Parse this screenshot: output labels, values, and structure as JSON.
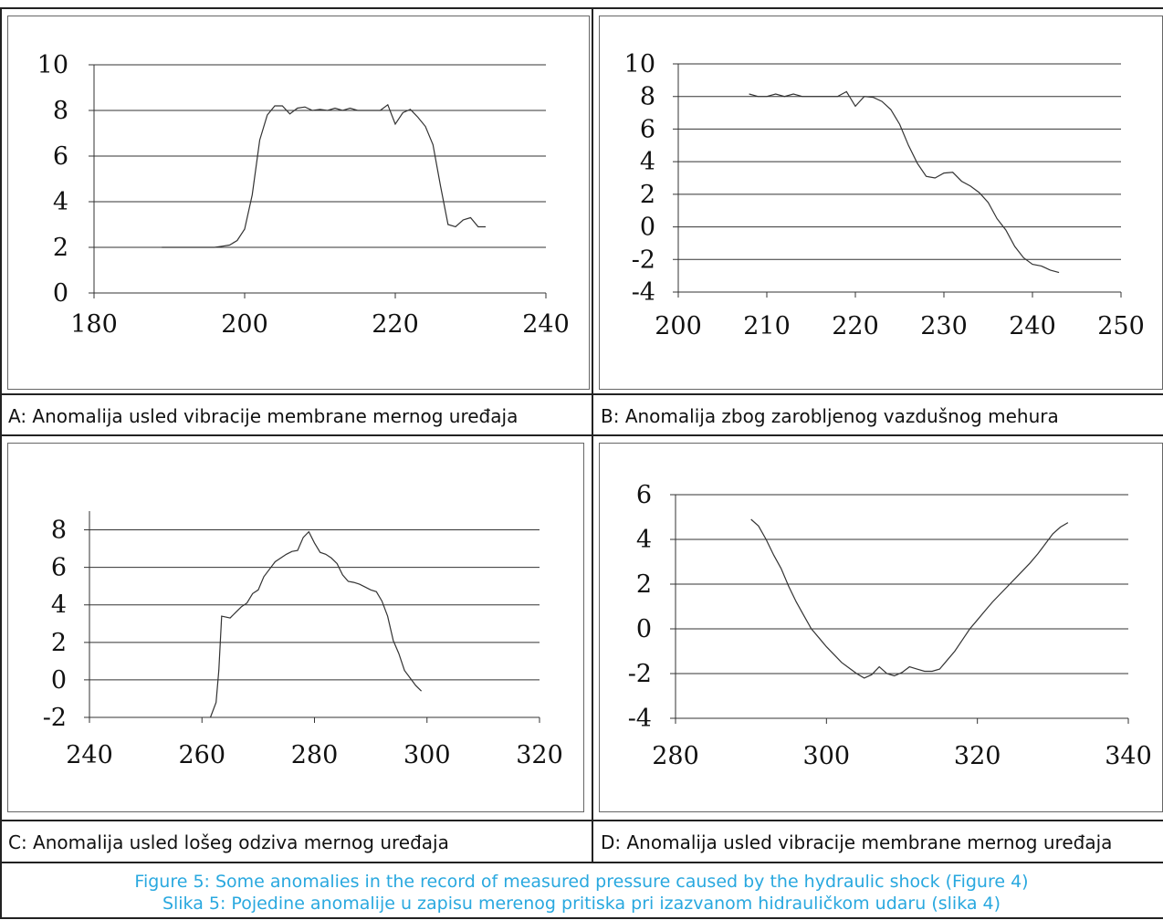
{
  "panels": [
    {
      "caption": "A: Anomalija usled vibracije membrane mernog uređaja",
      "chart_data": {
        "type": "line",
        "xlim": [
          180,
          240
        ],
        "ylim": [
          0,
          10
        ],
        "xticks": [
          180,
          200,
          220,
          240
        ],
        "yticks": [
          0,
          2,
          4,
          6,
          8,
          10
        ],
        "grid": true,
        "series": [
          {
            "x": [
              189,
              190,
              192,
              194,
              196,
              197,
              198,
              199,
              200,
              201,
              202,
              203,
              204,
              205,
              206,
              207,
              208,
              209,
              210,
              211,
              212,
              213,
              214,
              215,
              216,
              217,
              218,
              219,
              220,
              221,
              222,
              223,
              224,
              225,
              226,
              227,
              228,
              229,
              230,
              231,
              232
            ],
            "y": [
              2,
              2,
              2,
              2,
              2,
              2.05,
              2.1,
              2.3,
              2.8,
              4.3,
              6.7,
              7.8,
              8.2,
              8.2,
              7.85,
              8.1,
              8.15,
              8.0,
              8.05,
              8.0,
              8.1,
              8.0,
              8.1,
              8.0,
              8.0,
              8.0,
              8.0,
              8.25,
              7.4,
              7.9,
              8.05,
              7.7,
              7.3,
              6.5,
              4.7,
              3.0,
              2.9,
              3.2,
              3.3,
              2.9,
              2.9
            ]
          }
        ]
      }
    },
    {
      "caption": "B: Anomalija zbog zarobljenog vazdušnog mehura",
      "chart_data": {
        "type": "line",
        "xlim": [
          200,
          250
        ],
        "ylim": [
          -4,
          10
        ],
        "xticks": [
          200,
          210,
          220,
          230,
          240,
          250
        ],
        "yticks": [
          -4,
          -2,
          0,
          2,
          4,
          6,
          8,
          10
        ],
        "grid": true,
        "series": [
          {
            "x": [
              208,
              209,
              210,
              211,
              212,
              213,
              214,
              215,
              216,
              217,
              218,
              219,
              220,
              221,
              222,
              223,
              224,
              225,
              226,
              227,
              228,
              229,
              230,
              231,
              232,
              233,
              234,
              235,
              236,
              237,
              238,
              239,
              240,
              241,
              242,
              243
            ],
            "y": [
              8.15,
              8.0,
              8.0,
              8.15,
              8.0,
              8.15,
              8.0,
              8.0,
              8.0,
              8.0,
              8.0,
              8.3,
              7.4,
              8.0,
              7.95,
              7.7,
              7.2,
              6.3,
              5.0,
              3.9,
              3.1,
              3.0,
              3.3,
              3.35,
              2.8,
              2.5,
              2.1,
              1.5,
              0.5,
              -0.2,
              -1.2,
              -1.9,
              -2.3,
              -2.4,
              -2.65,
              -2.8
            ]
          }
        ]
      }
    },
    {
      "caption": "C: Anomalija usled lošeg odziva mernog uređaja",
      "chart_data": {
        "type": "line",
        "xlim": [
          240,
          320
        ],
        "ylim": [
          -2,
          9
        ],
        "xticks": [
          240,
          260,
          280,
          300,
          320
        ],
        "yticks": [
          -2,
          0,
          2,
          4,
          6,
          8
        ],
        "grid": true,
        "series": [
          {
            "x": [
              261.5,
              262.5,
              263,
              263.5,
              265,
              266,
              267,
              268,
              269,
              270,
              271,
              272,
              273,
              274,
              275,
              276,
              277,
              278,
              279,
              280,
              281,
              282,
              283,
              284,
              285,
              286,
              287,
              288,
              289,
              290,
              291,
              292,
              293,
              294,
              295,
              296,
              297,
              298,
              299
            ],
            "y": [
              -2,
              -1.2,
              0.5,
              3.4,
              3.3,
              3.6,
              3.9,
              4.1,
              4.6,
              4.8,
              5.5,
              5.9,
              6.3,
              6.5,
              6.7,
              6.85,
              6.9,
              7.6,
              7.9,
              7.3,
              6.8,
              6.7,
              6.5,
              6.2,
              5.6,
              5.25,
              5.2,
              5.1,
              4.95,
              4.8,
              4.7,
              4.2,
              3.4,
              2.1,
              1.4,
              0.5,
              0.1,
              -0.3,
              -0.6
            ]
          }
        ]
      }
    },
    {
      "caption": "D: Anomalija usled vibracije membrane mernog uređaja",
      "chart_data": {
        "type": "line",
        "xlim": [
          280,
          340
        ],
        "ylim": [
          -4,
          6
        ],
        "xticks": [
          280,
          300,
          320,
          340
        ],
        "yticks": [
          -4,
          -2,
          0,
          2,
          4,
          6
        ],
        "grid": true,
        "series": [
          {
            "x": [
              290,
              291,
              292,
              293,
              294,
              295,
              296,
              297,
              298,
              299,
              300,
              301,
              302,
              303,
              304,
              305,
              306,
              307,
              308,
              309,
              310,
              311,
              312,
              313,
              314,
              315,
              316,
              317,
              318,
              319,
              320,
              321,
              322,
              323,
              324,
              325,
              326,
              327,
              328,
              329,
              330,
              331,
              332
            ],
            "y": [
              4.9,
              4.6,
              4.0,
              3.3,
              2.7,
              1.9,
              1.2,
              0.6,
              0.0,
              -0.4,
              -0.8,
              -1.15,
              -1.5,
              -1.75,
              -2.0,
              -2.2,
              -2.05,
              -1.7,
              -2.0,
              -2.1,
              -1.95,
              -1.7,
              -1.8,
              -1.9,
              -1.9,
              -1.8,
              -1.4,
              -1.0,
              -0.5,
              0.0,
              0.4,
              0.8,
              1.2,
              1.55,
              1.9,
              2.25,
              2.6,
              2.95,
              3.35,
              3.8,
              4.25,
              4.55,
              4.75
            ]
          }
        ]
      }
    }
  ],
  "footer": {
    "line1": "Figure 5: Some anomalies in the record of measured pressure caused by the hydraulic shock (Figure 4)",
    "line2": "Slika 5: Pojedine anomalije u zapisu merenog pritiska pri izazvanom hidrauličkom udaru (slika 4)"
  },
  "colors": {
    "footer_text": "#29a8df",
    "line": "#333333",
    "grid": "#333333"
  }
}
